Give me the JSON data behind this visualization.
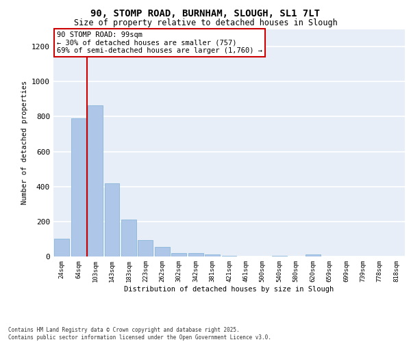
{
  "title_line1": "90, STOMP ROAD, BURNHAM, SLOUGH, SL1 7LT",
  "title_line2": "Size of property relative to detached houses in Slough",
  "xlabel": "Distribution of detached houses by size in Slough",
  "ylabel": "Number of detached properties",
  "categories": [
    "24sqm",
    "64sqm",
    "103sqm",
    "143sqm",
    "183sqm",
    "223sqm",
    "262sqm",
    "302sqm",
    "342sqm",
    "381sqm",
    "421sqm",
    "461sqm",
    "500sqm",
    "540sqm",
    "580sqm",
    "620sqm",
    "659sqm",
    "699sqm",
    "739sqm",
    "778sqm",
    "818sqm"
  ],
  "values": [
    100,
    790,
    865,
    420,
    210,
    95,
    55,
    20,
    20,
    10,
    5,
    0,
    0,
    5,
    0,
    10,
    0,
    0,
    0,
    0,
    0
  ],
  "bar_color": "#aec6e8",
  "bar_edge_color": "#7aafd4",
  "vline_color": "#cc0000",
  "vline_x": 1.5,
  "annotation_text": "90 STOMP ROAD: 99sqm\n← 30% of detached houses are smaller (757)\n69% of semi-detached houses are larger (1,760) →",
  "annotation_box_color": "#cc0000",
  "ylim": [
    0,
    1300
  ],
  "yticks": [
    0,
    200,
    400,
    600,
    800,
    1000,
    1200
  ],
  "background_color": "#e8eef7",
  "grid_color": "#ffffff",
  "footer_line1": "Contains HM Land Registry data © Crown copyright and database right 2025.",
  "footer_line2": "Contains public sector information licensed under the Open Government Licence v3.0."
}
